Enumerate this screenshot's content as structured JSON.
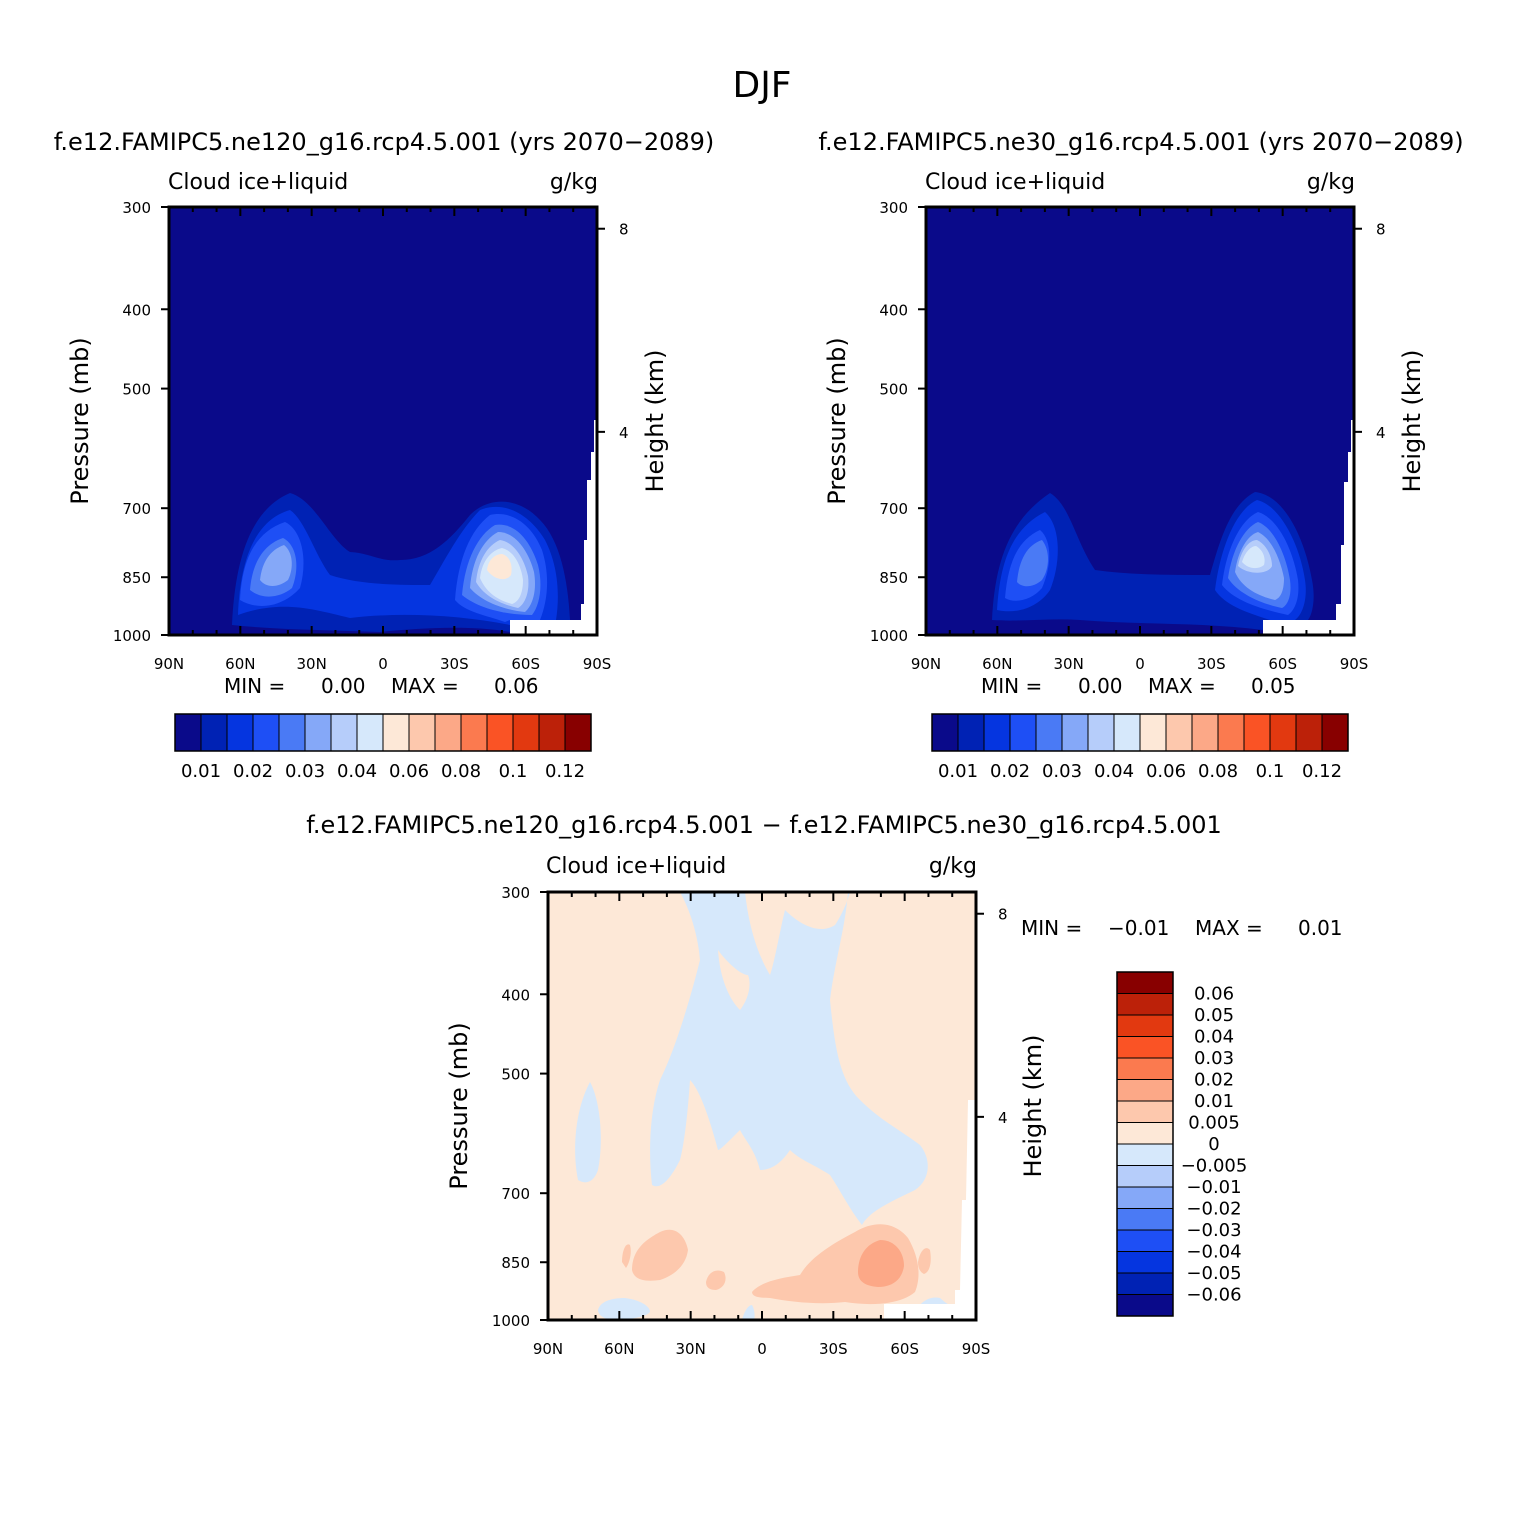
{
  "figure_title": "DJF",
  "panels": [
    {
      "title": "f.e12.FAMIPC5.ne120_g16.rcp4.5.001 (yrs 2070−2089)",
      "left_label": "Cloud ice+liquid",
      "right_label": "g/kg",
      "ylabel": "Pressure (mb)",
      "y2label": "Height (km)",
      "stats": {
        "min_label": "MIN =",
        "min": "0.00",
        "max_label": "MAX =",
        "max": "0.06"
      }
    },
    {
      "title": "f.e12.FAMIPC5.ne30_g16.rcp4.5.001 (yrs 2070−2089)",
      "left_label": "Cloud ice+liquid",
      "right_label": "g/kg",
      "ylabel": "Pressure (mb)",
      "y2label": "Height (km)",
      "stats": {
        "min_label": "MIN =",
        "min": "0.00",
        "max_label": "MAX =",
        "max": "0.05"
      }
    },
    {
      "title": "f.e12.FAMIPC5.ne120_g16.rcp4.5.001 − f.e12.FAMIPC5.ne30_g16.rcp4.5.001",
      "left_label": "Cloud ice+liquid",
      "right_label": "g/kg",
      "ylabel": "Pressure (mb)",
      "y2label": "Height (km)",
      "stats": {
        "min_label": "MIN =",
        "min": "−0.01",
        "max_label": "MAX =",
        "max": "0.01"
      }
    }
  ],
  "chart_data": [
    {
      "type": "heatmap",
      "title": "f.e12.FAMIPC5.ne120_g16.rcp4.5.001 (yrs 2070−2089)",
      "xlabel": "",
      "ylabel": "Pressure (mb)",
      "y2label": "Height (km)",
      "x_ticks": [
        "90N",
        "60N",
        "30N",
        "0",
        "30S",
        "60S",
        "90S"
      ],
      "y_ticks": [
        "300",
        "400",
        "500",
        "700",
        "850",
        "1000"
      ],
      "y2_ticks": [
        "8",
        "4"
      ],
      "colorbar_ticks": [
        "0.01",
        "0.02",
        "0.03",
        "0.04",
        "0.06",
        "0.08",
        "0.1",
        "0.12"
      ],
      "min": 0.0,
      "max": 0.06
    },
    {
      "type": "heatmap",
      "title": "f.e12.FAMIPC5.ne30_g16.rcp4.5.001 (yrs 2070−2089)",
      "xlabel": "",
      "ylabel": "Pressure (mb)",
      "y2label": "Height (km)",
      "x_ticks": [
        "90N",
        "60N",
        "30N",
        "0",
        "30S",
        "60S",
        "90S"
      ],
      "y_ticks": [
        "300",
        "400",
        "500",
        "700",
        "850",
        "1000"
      ],
      "y2_ticks": [
        "8",
        "4"
      ],
      "colorbar_ticks": [
        "0.01",
        "0.02",
        "0.03",
        "0.04",
        "0.06",
        "0.08",
        "0.1",
        "0.12"
      ],
      "min": 0.0,
      "max": 0.05
    },
    {
      "type": "heatmap",
      "title": "f.e12.FAMIPC5.ne120_g16.rcp4.5.001 − f.e12.FAMIPC5.ne30_g16.rcp4.5.001",
      "xlabel": "",
      "ylabel": "Pressure (mb)",
      "y2label": "Height (km)",
      "x_ticks": [
        "90N",
        "60N",
        "30N",
        "0",
        "30S",
        "60S",
        "90S"
      ],
      "y_ticks": [
        "300",
        "400",
        "500",
        "700",
        "850",
        "1000"
      ],
      "y2_ticks": [
        "8",
        "4"
      ],
      "colorbar_ticks": [
        "0.06",
        "0.05",
        "0.04",
        "0.03",
        "0.02",
        "0.01",
        "0.005",
        "0",
        "−0.005",
        "−0.01",
        "−0.02",
        "−0.03",
        "−0.04",
        "−0.05",
        "−0.06"
      ],
      "min": -0.01,
      "max": 0.01
    }
  ],
  "colors": {
    "seq": [
      "#0a0a8a",
      "#0022b4",
      "#0535e0",
      "#1e4ff5",
      "#4a7af5",
      "#85a8f8",
      "#b6cdfa",
      "#d6e8fb",
      "#fde8d7",
      "#fdc8ad",
      "#fca887",
      "#fb7a4f",
      "#fa5325",
      "#e23910",
      "#bc2109",
      "#880000"
    ],
    "diff": [
      "#0a0a8a",
      "#0022b4",
      "#0535e0",
      "#1e4ff5",
      "#4a7af5",
      "#85a8f8",
      "#b6cdfa",
      "#d6e8fb",
      "#fde8d7",
      "#fdc8ad",
      "#fca887",
      "#fb7a4f",
      "#fa5325",
      "#e23910",
      "#bc2109",
      "#880000"
    ]
  }
}
